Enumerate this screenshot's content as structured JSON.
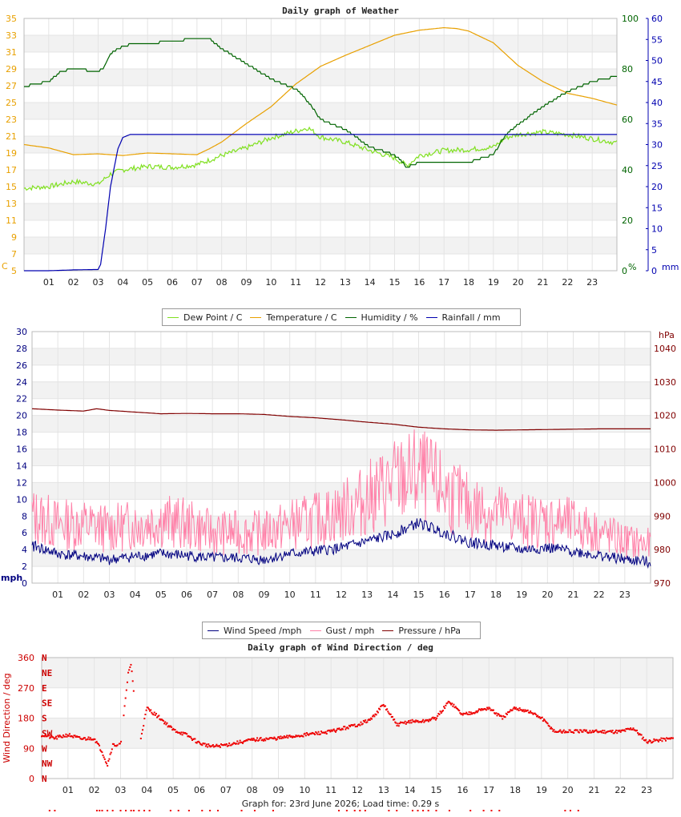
{
  "footer": {
    "text": "Graph for: 23rd June 2026; Load time: 0.29 s"
  },
  "chart_data": [
    {
      "type": "line",
      "title": "Daily graph of Weather",
      "x_ticks": [
        "01",
        "02",
        "03",
        "04",
        "05",
        "06",
        "07",
        "08",
        "09",
        "10",
        "11",
        "12",
        "13",
        "14",
        "15",
        "16",
        "17",
        "18",
        "19",
        "20",
        "21",
        "22",
        "23"
      ],
      "xlim_hours": [
        0,
        24
      ],
      "y_left": {
        "unit": "C",
        "ticks": [
          5,
          7,
          9,
          11,
          13,
          15,
          17,
          19,
          21,
          23,
          25,
          27,
          29,
          31,
          33,
          35
        ],
        "range": [
          5,
          35
        ],
        "color": "#e8a000"
      },
      "y_right1": {
        "unit": "%",
        "ticks": [
          0,
          20,
          40,
          60,
          80,
          100
        ],
        "range": [
          0,
          100
        ],
        "color": "#006400"
      },
      "y_right2": {
        "unit": "mm",
        "ticks": [
          0,
          5,
          10,
          15,
          20,
          25,
          30,
          35,
          40,
          45,
          50,
          55,
          60
        ],
        "range": [
          0,
          60
        ],
        "color": "#0000b0"
      },
      "grid": true,
      "legend_position": "bottom",
      "series": [
        {
          "name": "Dew Point / C",
          "axis": "left",
          "color": "#80e020",
          "x": [
            0,
            1,
            2,
            3,
            3.5,
            4,
            5,
            6,
            7,
            8,
            9,
            10,
            11,
            11.5,
            12,
            13,
            14,
            15,
            15.5,
            16,
            17,
            18,
            19,
            19.5,
            20,
            21,
            22,
            23,
            24
          ],
          "y": [
            14.8,
            15,
            15.6,
            15.3,
            16.5,
            17,
            17.4,
            17.3,
            17.6,
            18.7,
            19.6,
            20.8,
            21.6,
            22.0,
            20.9,
            20.3,
            19.3,
            18.4,
            17.5,
            18.7,
            19.3,
            19.4,
            19.7,
            20.8,
            21.2,
            21.5,
            21.2,
            20.7,
            20.2
          ]
        },
        {
          "name": "Temperature / C",
          "axis": "left",
          "color": "#e8a000",
          "x": [
            0,
            1,
            2,
            3,
            4,
            5,
            6,
            7,
            7.5,
            8,
            9,
            10,
            11,
            12,
            13,
            14,
            15,
            16,
            17,
            17.5,
            18,
            19,
            20,
            21,
            22,
            23,
            24
          ],
          "y": [
            20,
            19.6,
            18.8,
            18.9,
            18.7,
            19,
            18.9,
            18.8,
            19.5,
            20.3,
            22.5,
            24.5,
            27.2,
            29.3,
            30.6,
            31.8,
            33,
            33.6,
            33.9,
            33.8,
            33.5,
            32.1,
            29.4,
            27.5,
            26.1,
            25.5,
            24.7
          ]
        },
        {
          "name": "Humidity / %",
          "axis": "right1",
          "color": "#006400",
          "x": [
            0,
            0.5,
            1,
            1.5,
            2,
            3,
            3.2,
            3.5,
            4,
            4.5,
            5,
            6,
            7,
            7.5,
            8,
            9,
            10,
            11,
            11.5,
            12,
            13,
            14,
            15,
            15.5,
            16,
            17,
            18,
            19,
            19.5,
            20,
            21,
            22,
            23,
            24
          ],
          "y": [
            73,
            74,
            75,
            79,
            80,
            79,
            80,
            86,
            89,
            90,
            90,
            91,
            92,
            92,
            88,
            82,
            76,
            72,
            67,
            60,
            56,
            49,
            46,
            41,
            43,
            43,
            43,
            46,
            54,
            58,
            65,
            71,
            75,
            77
          ]
        },
        {
          "name": "Rainfall / mm",
          "axis": "right2",
          "color": "#0000b0",
          "x": [
            0,
            1,
            2,
            3,
            3.1,
            3.3,
            3.5,
            3.8,
            4,
            4.3,
            5,
            10,
            15,
            20,
            24
          ],
          "y": [
            0,
            0,
            0.2,
            0.3,
            1.5,
            10,
            20,
            29,
            31.7,
            32.4,
            32.4,
            32.4,
            32.4,
            32.4,
            32.4
          ]
        }
      ]
    },
    {
      "type": "line",
      "title": "",
      "x_ticks": [
        "01",
        "02",
        "03",
        "04",
        "05",
        "06",
        "07",
        "08",
        "09",
        "10",
        "11",
        "12",
        "13",
        "14",
        "15",
        "16",
        "17",
        "18",
        "19",
        "20",
        "21",
        "22",
        "23"
      ],
      "xlim_hours": [
        0,
        24
      ],
      "y_left": {
        "unit": "mph",
        "ticks": [
          0,
          2,
          4,
          6,
          8,
          10,
          12,
          14,
          16,
          18,
          20,
          22,
          24,
          26,
          28,
          30
        ],
        "range": [
          0,
          30
        ],
        "color": "#000080"
      },
      "y_right": {
        "unit": "hPa",
        "ticks": [
          970,
          980,
          990,
          1000,
          1010,
          1020,
          1030,
          1040
        ],
        "range": [
          970,
          1045
        ],
        "color": "#800000"
      },
      "grid": true,
      "legend_position": "bottom",
      "series": [
        {
          "name": "Wind Speed /mph",
          "axis": "left",
          "color": "#000080",
          "x": [
            0,
            1,
            2,
            3,
            4,
            5,
            6,
            7,
            8,
            9,
            10,
            11,
            12,
            13,
            14,
            15,
            16,
            17,
            18,
            19,
            20,
            21,
            22,
            23,
            24
          ],
          "y": [
            4.5,
            3.5,
            3.2,
            2.8,
            3.2,
            3.5,
            3.3,
            3,
            3,
            2.8,
            3.5,
            3.8,
            4.2,
            5,
            5.8,
            7.2,
            6,
            4.8,
            4.5,
            4,
            4.2,
            3.8,
            3.3,
            2.8,
            2.5
          ]
        },
        {
          "name": "Gust / mph",
          "axis": "left",
          "color": "#ff80a8",
          "x": [
            0,
            1,
            2,
            3,
            4,
            5,
            6,
            7,
            8,
            9,
            10,
            11,
            12,
            13,
            14,
            15,
            16,
            17,
            18,
            19,
            20,
            21,
            22,
            23,
            24
          ],
          "y": [
            8,
            7,
            7,
            6.5,
            7,
            7.5,
            7,
            6,
            6,
            6,
            7,
            7.5,
            8.5,
            10,
            12,
            13,
            11,
            9,
            8.5,
            7.5,
            7.5,
            7,
            6,
            5,
            4.5
          ]
        },
        {
          "name": "Pressure / hPa",
          "axis": "right",
          "color": "#800000",
          "x": [
            0,
            1,
            2,
            2.5,
            3,
            4,
            5,
            6,
            7,
            8,
            9,
            10,
            11,
            12,
            13,
            14,
            15,
            16,
            17,
            18,
            19,
            20,
            21,
            22,
            23,
            24
          ],
          "y": [
            1022,
            1021.6,
            1021.3,
            1022,
            1021.5,
            1021,
            1020.5,
            1020.6,
            1020.5,
            1020.5,
            1020.3,
            1019.7,
            1019.3,
            1018.7,
            1018,
            1017.4,
            1016.5,
            1016,
            1015.7,
            1015.6,
            1015.7,
            1015.8,
            1015.9,
            1016,
            1016,
            1016
          ]
        }
      ]
    },
    {
      "type": "scatter",
      "title": "Daily graph of Wind Direction / deg",
      "x_ticks": [
        "01",
        "02",
        "03",
        "04",
        "05",
        "06",
        "07",
        "08",
        "09",
        "10",
        "11",
        "12",
        "13",
        "14",
        "15",
        "16",
        "17",
        "18",
        "19",
        "20",
        "21",
        "22",
        "23"
      ],
      "xlim_hours": [
        0,
        24
      ],
      "y_left": {
        "unit": "Wind Direction / deg",
        "ticks": [
          0,
          90,
          180,
          270,
          360
        ],
        "range": [
          0,
          360
        ],
        "color": "#cc0000"
      },
      "compass_labels": [
        "N",
        "NE",
        "E",
        "SE",
        "S",
        "SW",
        "W",
        "NW",
        "N"
      ],
      "grid": true,
      "series": [
        {
          "name": "",
          "color": "#ee0000",
          "x": [
            0,
            0.5,
            1,
            1.5,
            2,
            2.3,
            2.5,
            2.7,
            3,
            3.3,
            3.4,
            3.7,
            4,
            4.5,
            5,
            5.5,
            6,
            6.5,
            7,
            8,
            9,
            10,
            11,
            12,
            12.5,
            13,
            13.5,
            14,
            14.5,
            15,
            15.5,
            16,
            16.5,
            17,
            17.5,
            18,
            18.5,
            19,
            19.5,
            20,
            20.5,
            21,
            22,
            22.5,
            23,
            24
          ],
          "y": [
            130,
            120,
            130,
            118,
            120,
            80,
            40,
            100,
            100,
            320,
            340,
            95,
            210,
            180,
            145,
            130,
            105,
            95,
            100,
            115,
            120,
            130,
            140,
            160,
            175,
            220,
            160,
            170,
            170,
            180,
            230,
            190,
            200,
            210,
            180,
            210,
            200,
            180,
            140,
            140,
            140,
            140,
            140,
            150,
            110,
            120
          ]
        },
        {
          "name": "",
          "color": "#ee0000",
          "note": "ticks",
          "x": [
            0.3,
            0.5,
            2.1,
            2.2,
            2.3,
            2.5,
            2.7,
            3,
            3.2,
            3.4,
            3.5,
            3.7,
            3.9,
            4.1,
            4.9,
            5.2,
            5.6,
            6.1,
            6.4,
            6.7,
            7.6,
            8.1,
            8.8,
            11.3,
            11.6,
            11.9,
            12.1,
            12.3,
            13.2,
            13.5,
            14.1,
            14.3,
            14.5,
            14.7,
            15,
            15.5,
            16.3,
            16.8,
            17.1,
            17.4,
            19.9,
            20.1,
            20.4
          ]
        }
      ]
    }
  ],
  "legends": [
    {
      "items": [
        {
          "label": "Dew Point / C",
          "color": "#80e020"
        },
        {
          "label": "Temperature / C",
          "color": "#e8a000"
        },
        {
          "label": "Humidity / %",
          "color": "#006400"
        },
        {
          "label": "Rainfall / mm",
          "color": "#0000b0"
        }
      ]
    },
    {
      "items": [
        {
          "label": "Wind Speed /mph",
          "color": "#000080"
        },
        {
          "label": "Gust / mph",
          "color": "#ff80a8"
        },
        {
          "label": "Pressure / hPa",
          "color": "#800000"
        }
      ]
    }
  ]
}
